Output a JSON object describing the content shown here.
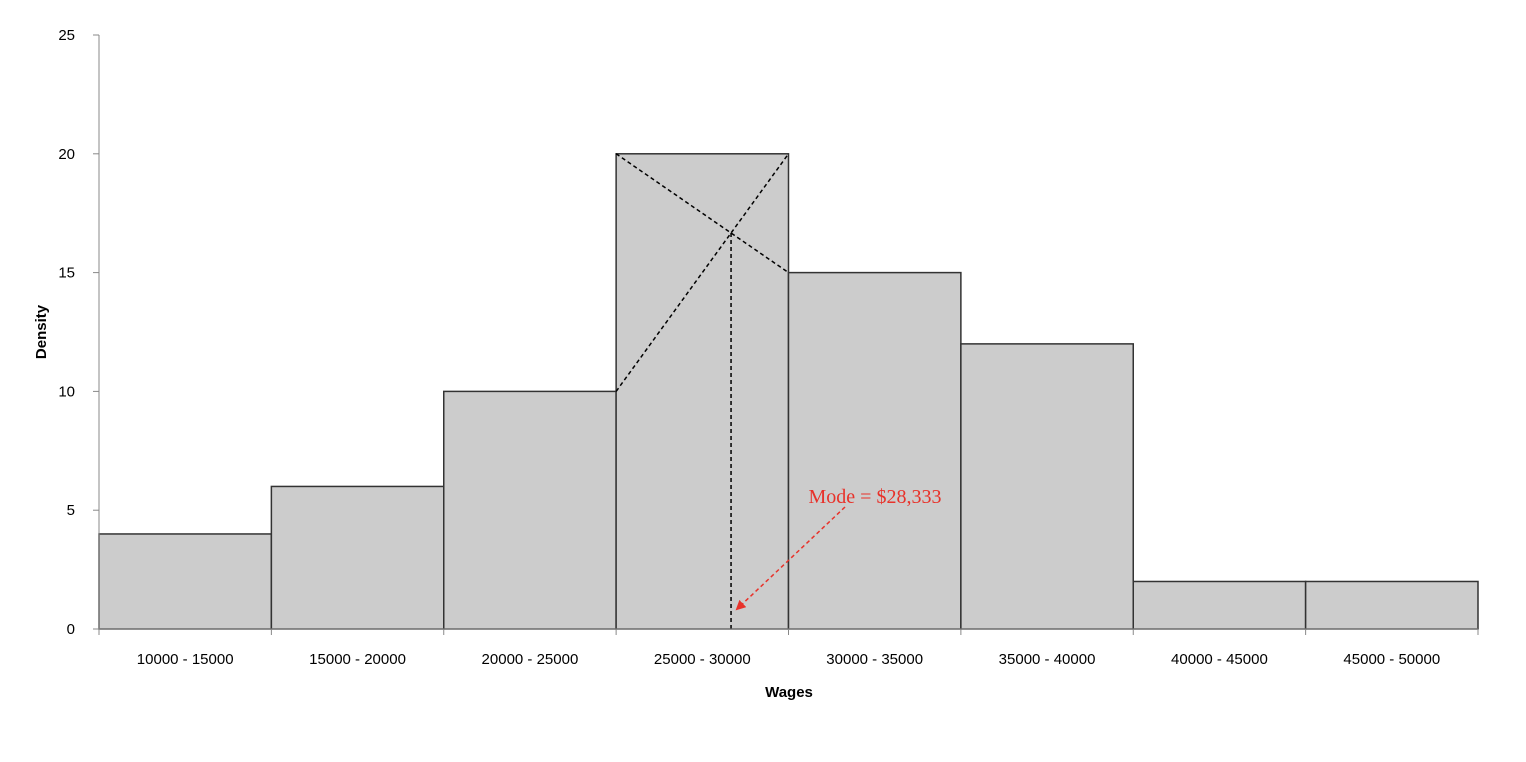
{
  "chart_data": {
    "type": "bar",
    "categories": [
      "10000 - 15000",
      "15000 - 20000",
      "20000 - 25000",
      "25000 - 30000",
      "30000 - 35000",
      "35000 - 40000",
      "40000 - 45000",
      "45000 - 50000"
    ],
    "values": [
      4,
      6,
      10,
      20,
      15,
      12,
      2,
      2
    ],
    "xlabel": "Wages",
    "ylabel": "Density",
    "ylim": [
      0,
      25
    ],
    "yticks": [
      "0",
      "5",
      "10",
      "15",
      "20",
      "25"
    ],
    "grid": false,
    "colors": {
      "bar_fill": "#cccccc",
      "bar_stroke": "#333333",
      "annotation": "#e8322a"
    },
    "annotation": {
      "text": "Mode = $28,333",
      "mode_value": 28333
    }
  }
}
